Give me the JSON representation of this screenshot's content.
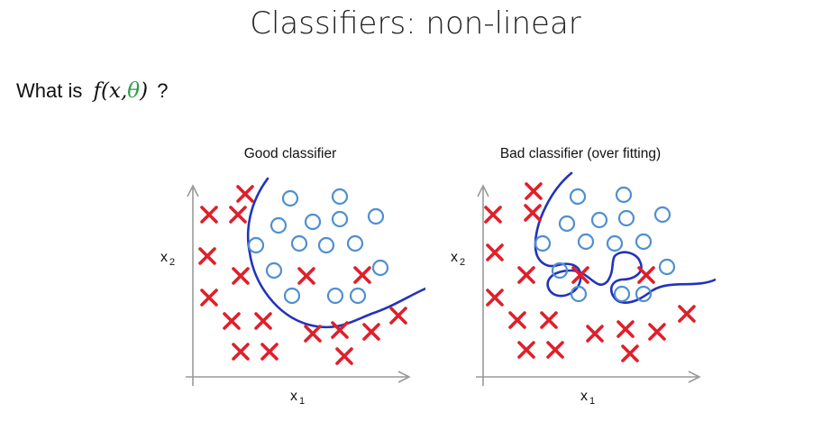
{
  "header": {
    "title": "Classifiers: non-linear"
  },
  "question": {
    "prefix": "What is",
    "func": "f",
    "open": "(",
    "x": "x",
    "comma": ",",
    "theta": "θ",
    "close": ")",
    "suffix": "?"
  },
  "colors": {
    "cross": "#e01f2a",
    "circle": "#4f8fd0",
    "boundary": "#2233bb",
    "theta": "#2e9c4a",
    "axis": "#999999"
  },
  "plots": [
    {
      "title": "Good classifier",
      "xlabel": "x1",
      "ylabel": "x2",
      "boundary": "smooth"
    },
    {
      "title": "Bad classifier (over fitting)",
      "xlabel": "x1",
      "ylabel": "x2",
      "boundary": "overfit"
    }
  ]
}
